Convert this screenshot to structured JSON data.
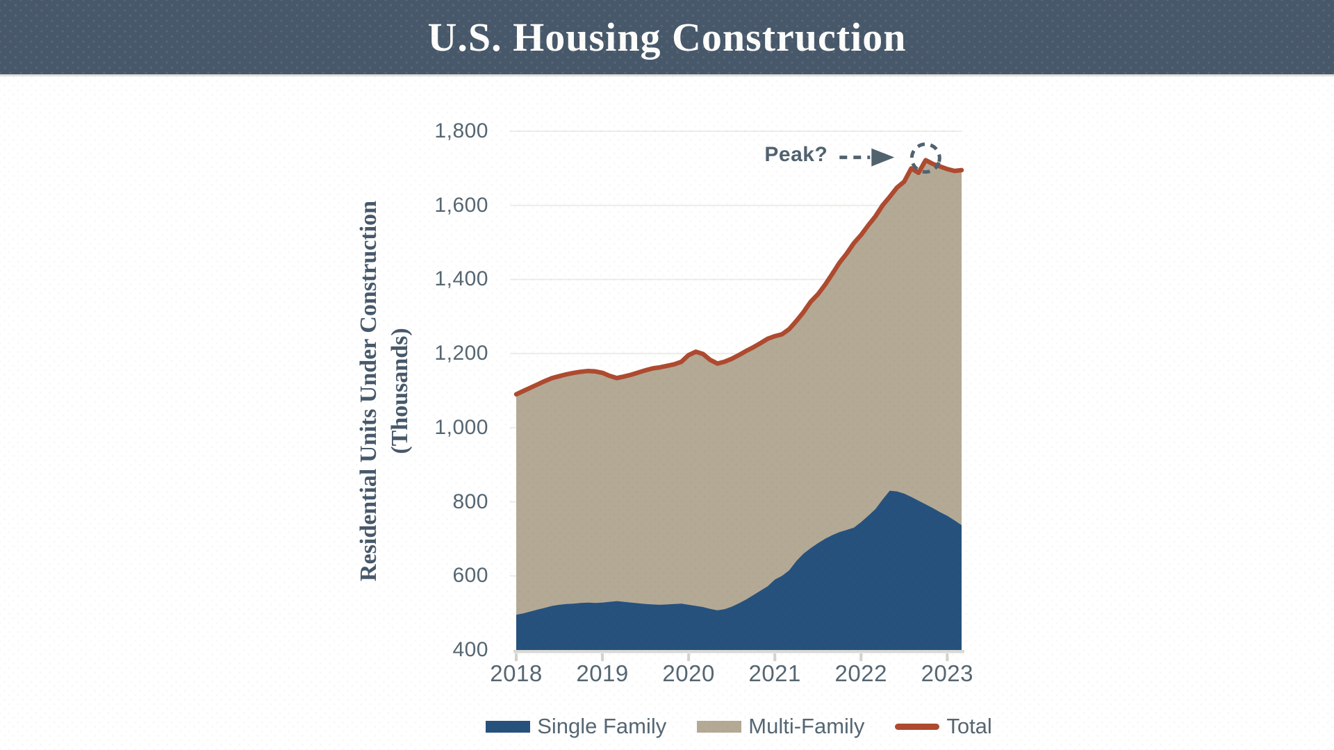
{
  "header": {
    "title": "U.S. Housing Construction",
    "background_color": "#47586a",
    "title_color": "#fdfdfb"
  },
  "chart_data": {
    "type": "area",
    "stacked": true,
    "grid": "horizontal",
    "legend_position": "bottom-center",
    "y_axis": {
      "label_line1": "Residential Units Under Construction",
      "label_line2": "(Thousands)",
      "min": 400,
      "max": 1800,
      "ticks": [
        {
          "label": "1,800",
          "value": 1800
        },
        {
          "label": "1,600",
          "value": 1600
        },
        {
          "label": "1,400",
          "value": 1400
        },
        {
          "label": "1,200",
          "value": 1200
        },
        {
          "label": "1,000",
          "value": 1000
        },
        {
          "label": "800",
          "value": 800
        },
        {
          "label": "600",
          "value": 600
        },
        {
          "label": "400",
          "value": 400
        }
      ]
    },
    "x_axis": {
      "ticks": [
        {
          "label": "2018",
          "month_index": 0
        },
        {
          "label": "2019",
          "month_index": 12
        },
        {
          "label": "2020",
          "month_index": 24
        },
        {
          "label": "2021",
          "month_index": 36
        },
        {
          "label": "2022",
          "month_index": 48
        },
        {
          "label": "2023",
          "month_index": 60
        }
      ]
    },
    "months": [
      "2018-01",
      "2018-02",
      "2018-03",
      "2018-04",
      "2018-05",
      "2018-06",
      "2018-07",
      "2018-08",
      "2018-09",
      "2018-10",
      "2018-11",
      "2018-12",
      "2019-01",
      "2019-02",
      "2019-03",
      "2019-04",
      "2019-05",
      "2019-06",
      "2019-07",
      "2019-08",
      "2019-09",
      "2019-10",
      "2019-11",
      "2019-12",
      "2020-01",
      "2020-02",
      "2020-03",
      "2020-04",
      "2020-05",
      "2020-06",
      "2020-07",
      "2020-08",
      "2020-09",
      "2020-10",
      "2020-11",
      "2020-12",
      "2021-01",
      "2021-02",
      "2021-03",
      "2021-04",
      "2021-05",
      "2021-06",
      "2021-07",
      "2021-08",
      "2021-09",
      "2021-10",
      "2021-11",
      "2021-12",
      "2022-01",
      "2022-02",
      "2022-03",
      "2022-04",
      "2022-05",
      "2022-06",
      "2022-07",
      "2022-08",
      "2022-09",
      "2022-10",
      "2022-11",
      "2022-12",
      "2023-01",
      "2023-02",
      "2023-03"
    ],
    "series": [
      {
        "name": "Single Family",
        "type": "area",
        "color": "#27517d",
        "values": [
          495,
          499,
          504,
          509,
          514,
          519,
          522,
          524,
          525,
          527,
          528,
          527,
          528,
          530,
          532,
          530,
          528,
          526,
          524,
          523,
          522,
          523,
          524,
          525,
          522,
          519,
          516,
          511,
          507,
          510,
          517,
          526,
          536,
          548,
          560,
          572,
          590,
          600,
          615,
          640,
          660,
          675,
          688,
          700,
          710,
          718,
          724,
          730,
          745,
          762,
          780,
          806,
          830,
          828,
          822,
          813,
          803,
          793,
          783,
          772,
          762,
          750,
          737
        ]
      },
      {
        "name": "Multi-Family",
        "type": "area",
        "color": "#b3a995",
        "values": [
          595,
          600,
          604,
          608,
          612,
          615,
          617,
          620,
          623,
          624,
          625,
          625,
          620,
          610,
          602,
          608,
          615,
          623,
          631,
          637,
          641,
          644,
          647,
          653,
          674,
          686,
          683,
          672,
          666,
          668,
          669,
          670,
          671,
          669,
          668,
          668,
          657,
          652,
          651,
          648,
          652,
          665,
          672,
          686,
          705,
          727,
          746,
          768,
          775,
          784,
          790,
          794,
          793,
          820,
          842,
          887,
          885,
          929,
          929,
          933,
          936,
          943,
          958
        ]
      },
      {
        "name": "Total",
        "type": "line",
        "color": "#ae4a2f",
        "values": [
          1090,
          1099,
          1108,
          1117,
          1126,
          1134,
          1139,
          1144,
          1148,
          1151,
          1153,
          1152,
          1148,
          1140,
          1134,
          1138,
          1143,
          1149,
          1155,
          1160,
          1163,
          1167,
          1171,
          1178,
          1196,
          1205,
          1199,
          1183,
          1173,
          1178,
          1186,
          1196,
          1207,
          1217,
          1228,
          1240,
          1247,
          1252,
          1266,
          1288,
          1312,
          1340,
          1360,
          1386,
          1415,
          1445,
          1470,
          1498,
          1520,
          1546,
          1570,
          1600,
          1623,
          1648,
          1664,
          1700,
          1688,
          1722,
          1712,
          1705,
          1698,
          1693,
          1695
        ]
      }
    ],
    "annotation": {
      "text": "Peak?",
      "month": "2022-10",
      "value": 1722,
      "color": "#51626f"
    },
    "colors": {
      "gridline": "#ecece8",
      "baseline": "#d9d9d5",
      "tick_mark": "#d2d2ce",
      "axis_text": "#556672",
      "mf_edge": "#ccc9bf"
    }
  }
}
